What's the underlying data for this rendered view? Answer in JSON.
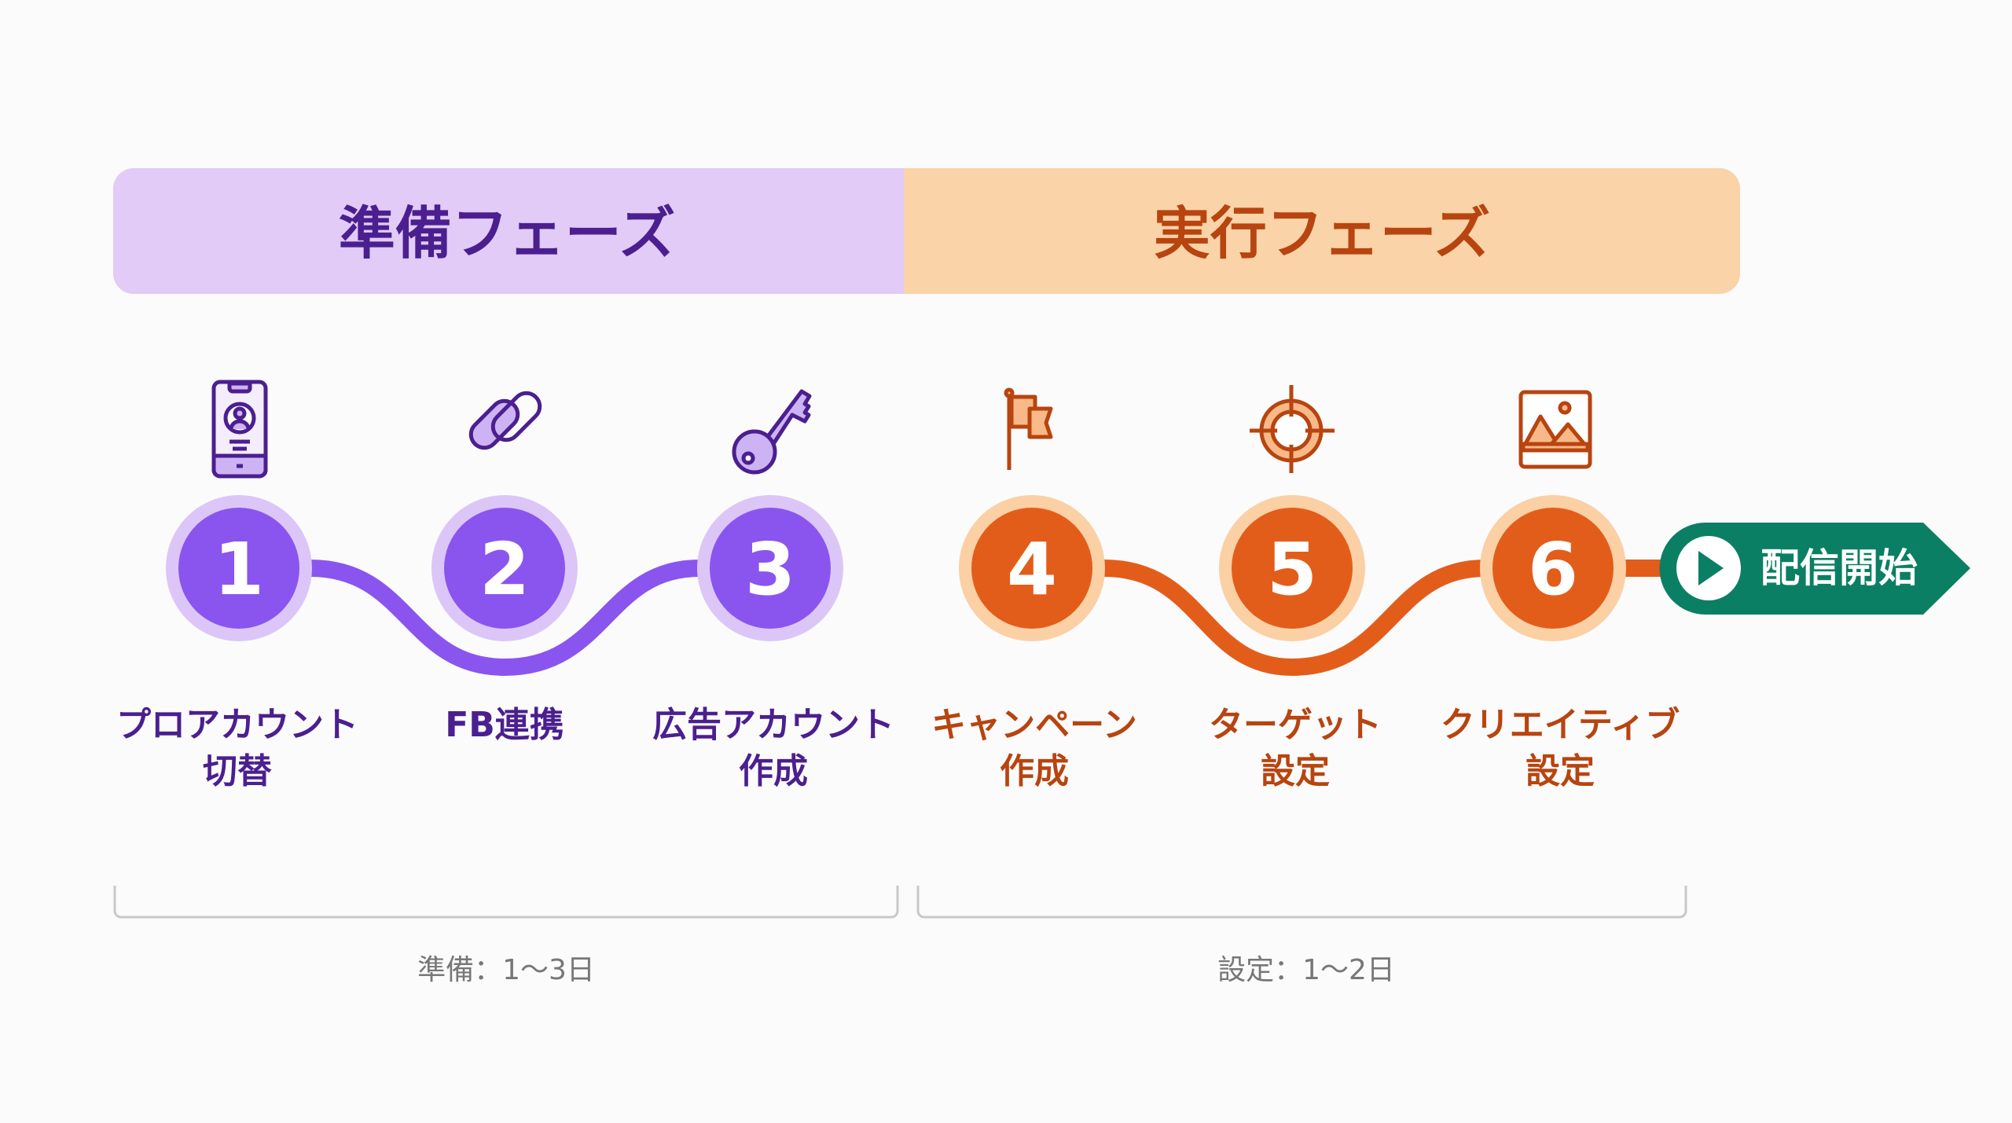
{
  "phases": [
    {
      "title": "準備フェーズ",
      "bg": "#e2cbf7",
      "text": "#4b1f8f"
    },
    {
      "title": "実行フェーズ",
      "bg": "#fad3a8",
      "text": "#b8440f"
    }
  ],
  "steps": [
    {
      "number": "1",
      "label_line1": "プロアカウント",
      "label_line2": "切替",
      "icon": "smartphone-profile-icon",
      "phase": 0
    },
    {
      "number": "2",
      "label_line1": "FB連携",
      "label_line2": "",
      "icon": "link-chain-icon",
      "phase": 0
    },
    {
      "number": "3",
      "label_line1": "広告アカウント",
      "label_line2": "作成",
      "icon": "key-icon",
      "phase": 0
    },
    {
      "number": "4",
      "label_line1": "キャンペーン",
      "label_line2": "作成",
      "icon": "flag-icon",
      "phase": 1
    },
    {
      "number": "5",
      "label_line1": "ターゲット",
      "label_line2": "設定",
      "icon": "crosshair-target-icon",
      "phase": 1
    },
    {
      "number": "6",
      "label_line1": "クリエイティブ",
      "label_line2": "設定",
      "icon": "image-icon",
      "phase": 1
    }
  ],
  "finish": {
    "label": "配信開始",
    "icon": "play-icon",
    "color": "#0b7f63"
  },
  "durations": [
    {
      "text": "準備：1〜3日"
    },
    {
      "text": "設定：1〜2日"
    }
  ],
  "colors": {
    "purple": "#8a55ee",
    "purple_ring": "#dcc6f7",
    "orange": "#e35d1a",
    "orange_ring": "#fbd0a4"
  }
}
